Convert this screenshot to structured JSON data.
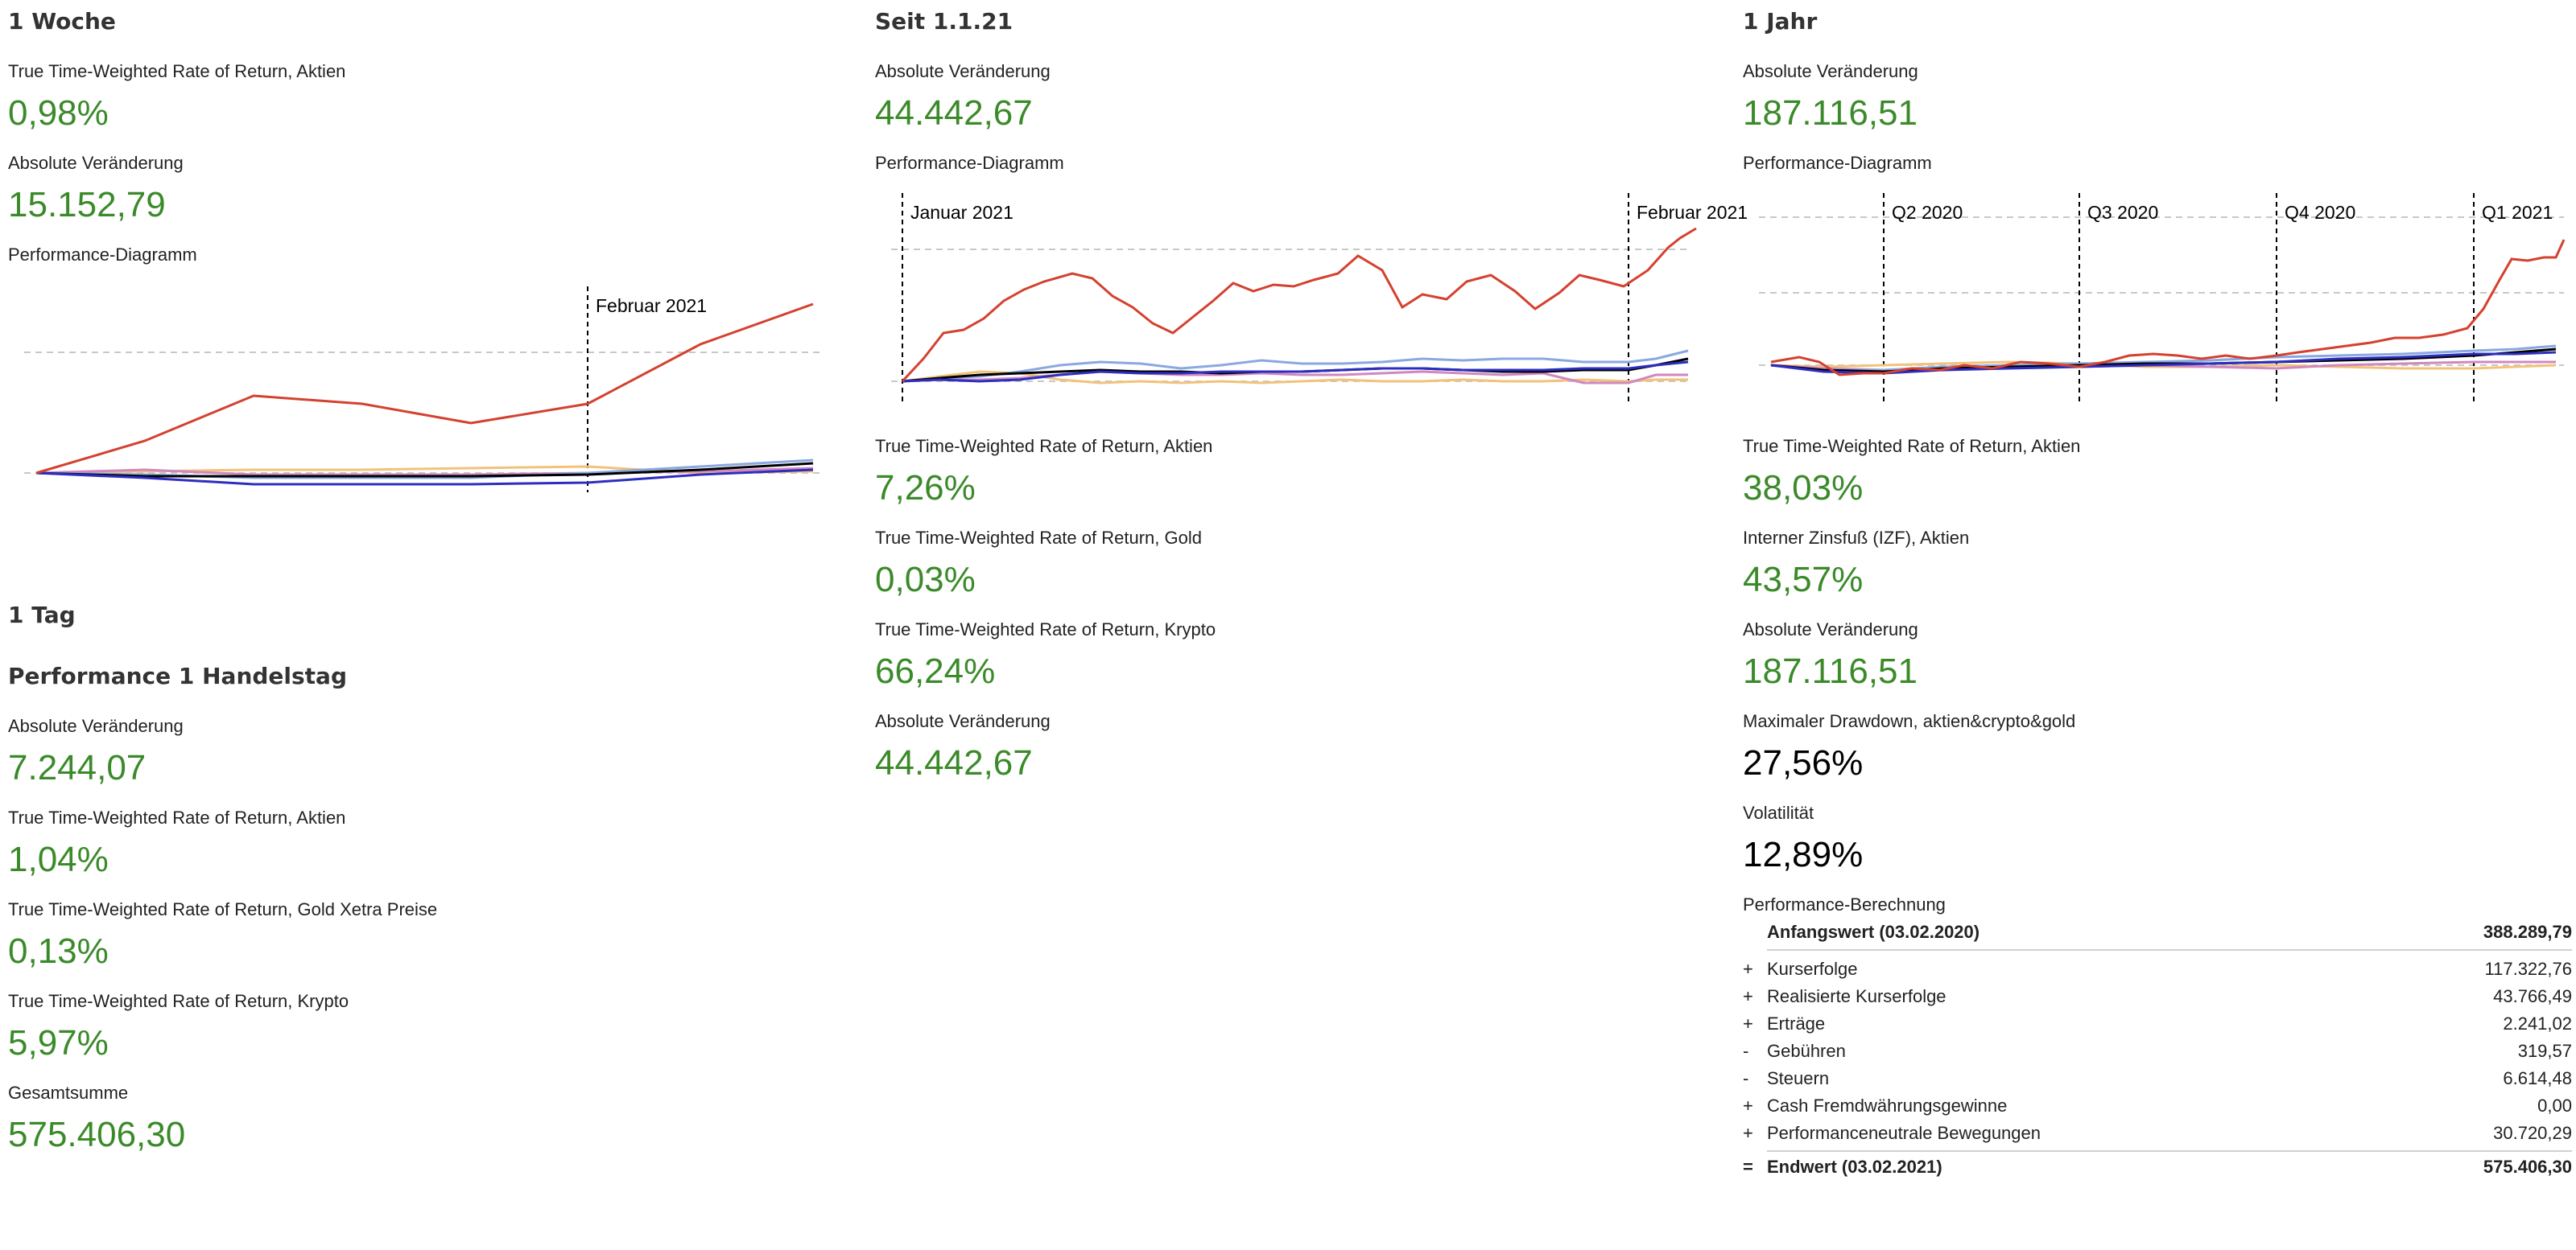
{
  "colors": {
    "accent_green": "#3b8a2a",
    "value_black": "#000000",
    "series": [
      "#d4412f",
      "#000000",
      "#8aa8e0",
      "#2d2dc0",
      "#f2c27a",
      "#d088c0"
    ]
  },
  "week": {
    "heading": "1 Woche",
    "twr_label": "True Time-Weighted Rate of Return, Aktien",
    "twr_value": "0,98%",
    "abs_label": "Absolute Veränderung",
    "abs_value": "15.152,79",
    "chart_label": "Performance-Diagramm",
    "marker": "Februar 2021"
  },
  "day": {
    "heading": "1 Tag",
    "subheading": "Performance 1 Handelstag",
    "abs_label": "Absolute Veränderung",
    "abs_value": "7.244,07",
    "twr_aktien_label": "True Time-Weighted Rate of Return, Aktien",
    "twr_aktien_value": "1,04%",
    "twr_gold_label": "True Time-Weighted Rate of Return, Gold Xetra Preise",
    "twr_gold_value": "0,13%",
    "twr_krypto_label": "True Time-Weighted Rate of Return, Krypto",
    "twr_krypto_value": "5,97%",
    "total_label": "Gesamtsumme",
    "total_value": "575.406,30"
  },
  "ytd": {
    "heading": "Seit 1.1.21",
    "abs_label": "Absolute Veränderung",
    "abs_value": "44.442,67",
    "chart_label": "Performance-Diagramm",
    "marker_start": "Januar 2021",
    "marker_end": "Februar 2021",
    "twr_aktien_label": "True Time-Weighted Rate of Return, Aktien",
    "twr_aktien_value": "7,26%",
    "twr_gold_label": "True Time-Weighted Rate of Return, Gold",
    "twr_gold_value": "0,03%",
    "twr_krypto_label": "True Time-Weighted Rate of Return, Krypto",
    "twr_krypto_value": "66,24%",
    "abs2_label": "Absolute Veränderung",
    "abs2_value": "44.442,67"
  },
  "year": {
    "heading": "1 Jahr",
    "abs_label": "Absolute Veränderung",
    "abs_value": "187.116,51",
    "chart_label": "Performance-Diagramm",
    "quarters": [
      "Q2 2020",
      "Q3 2020",
      "Q4 2020",
      "Q1 2021"
    ],
    "twr_label": "True Time-Weighted Rate of Return, Aktien",
    "twr_value": "38,03%",
    "izf_label": "Interner Zinsfuß (IZF), Aktien",
    "izf_value": "43,57%",
    "abs2_label": "Absolute Veränderung",
    "abs2_value": "187.116,51",
    "drawdown_label": "Maximaler Drawdown, aktien&crypto&gold",
    "drawdown_value": "27,56%",
    "vola_label": "Volatilität",
    "vola_value": "12,89%",
    "calc_label": "Performance-Berechnung",
    "calc": {
      "start": {
        "label": "Anfangswert (03.02.2020)",
        "value": "388.289,79"
      },
      "rows": [
        {
          "sign": "+",
          "label": "Kurserfolge",
          "value": "117.322,76"
        },
        {
          "sign": "+",
          "label": "Realisierte Kurserfolge",
          "value": "43.766,49"
        },
        {
          "sign": "+",
          "label": "Erträge",
          "value": "2.241,02"
        },
        {
          "sign": "-",
          "label": "Gebühren",
          "value": "319,57"
        },
        {
          "sign": "-",
          "label": "Steuern",
          "value": "6.614,48"
        },
        {
          "sign": "+",
          "label": "Cash Fremdwährungsgewinne",
          "value": "0,00"
        },
        {
          "sign": "+",
          "label": "Performanceneutrale Bewegungen",
          "value": "30.720,29"
        }
      ],
      "end": {
        "sign": "=",
        "label": "Endwert (03.02.2021)",
        "value": "575.406,30"
      }
    }
  }
}
